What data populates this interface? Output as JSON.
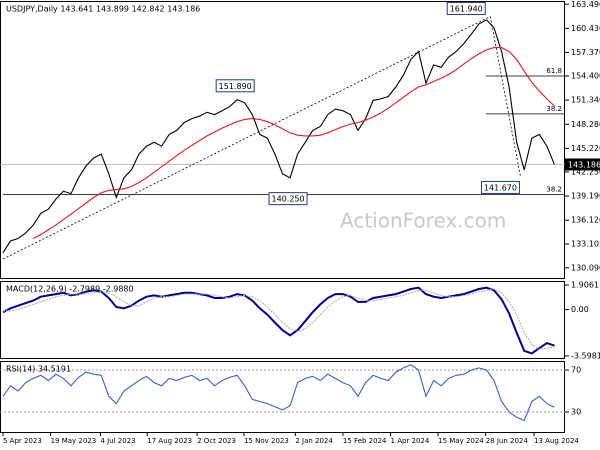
{
  "chart_data": [
    {
      "type": "line",
      "title": "USDJPY,Daily 143.641 143.899 142.842 143.186",
      "watermark": "ActionForex.com",
      "x": [
        0,
        1,
        2,
        3,
        4,
        5,
        6,
        7,
        8,
        9,
        10,
        11,
        12,
        13,
        14,
        15,
        16,
        17,
        18,
        19,
        20,
        21,
        22,
        23,
        24,
        25,
        26,
        27,
        28,
        29,
        30,
        31,
        32,
        33,
        34,
        35,
        36,
        37,
        38,
        39,
        40,
        41,
        42,
        43,
        44,
        45,
        46,
        47,
        48,
        49,
        50,
        51,
        52,
        53,
        54,
        55,
        56,
        57,
        58,
        59,
        60,
        61,
        62,
        63,
        64,
        65,
        66,
        67,
        68,
        69,
        70,
        71,
        72,
        73
      ],
      "series": [
        {
          "color": "#000000",
          "values": [
            132.0,
            133.5,
            133.8,
            134.5,
            135.5,
            137.0,
            137.5,
            138.8,
            139.8,
            139.5,
            141.5,
            143.0,
            144.0,
            144.5,
            142.0,
            139.0,
            141.5,
            142.5,
            144.5,
            145.5,
            146.0,
            145.5,
            147.0,
            147.5,
            148.5,
            149.0,
            149.3,
            149.8,
            149.5,
            150.0,
            150.5,
            151.4,
            151.0,
            149.5,
            147.0,
            146.5,
            144.5,
            142.0,
            141.5,
            144.5,
            146.0,
            147.5,
            148.0,
            149.5,
            150.2,
            150.0,
            149.5,
            147.5,
            149.0,
            151.3,
            151.5,
            151.8,
            153.0,
            154.5,
            156.5,
            157.5,
            153.5,
            155.8,
            155.5,
            156.8,
            157.5,
            158.5,
            159.7,
            161.0,
            161.5,
            160.5,
            157.5,
            153.0,
            146.0,
            142.5,
            146.5,
            147.0,
            145.5,
            143.2
          ]
        },
        {
          "color": "#e41a1c",
          "values": [
            null,
            null,
            null,
            null,
            133.8,
            134.3,
            134.9,
            135.5,
            136.2,
            136.9,
            137.6,
            138.3,
            139.0,
            139.6,
            139.9,
            140.0,
            140.1,
            140.4,
            140.9,
            141.5,
            142.2,
            142.9,
            143.6,
            144.3,
            145.0,
            145.6,
            146.2,
            146.8,
            147.3,
            147.8,
            148.2,
            148.6,
            148.9,
            149.0,
            148.9,
            148.6,
            148.2,
            147.7,
            147.2,
            146.9,
            146.8,
            146.8,
            146.9,
            147.2,
            147.6,
            148.0,
            148.3,
            148.5,
            148.8,
            149.2,
            149.7,
            150.3,
            151.0,
            151.7,
            152.4,
            153.0,
            153.3,
            153.7,
            154.1,
            154.6,
            155.2,
            155.9,
            156.6,
            157.2,
            157.7,
            158.0,
            158.0,
            157.5,
            156.5,
            155.0,
            153.6,
            152.5,
            151.5,
            150.6
          ]
        }
      ],
      "xlim": [
        0,
        74
      ],
      "ylim": [
        128.8,
        163.9
      ],
      "yticks": [
        {
          "value": 130.09,
          "label": "130.090"
        },
        {
          "value": 133.105,
          "label": "133.105"
        },
        {
          "value": 136.12,
          "label": "136.120"
        },
        {
          "value": 139.19,
          "label": "139.190"
        },
        {
          "value": 142.25,
          "label": "142.250"
        },
        {
          "value": 145.22,
          "label": "145.220"
        },
        {
          "value": 148.28,
          "label": "148.280"
        },
        {
          "value": 151.34,
          "label": "151.340"
        },
        {
          "value": 154.4,
          "label": "154.400"
        },
        {
          "value": 157.37,
          "label": "157.370"
        },
        {
          "value": 160.43,
          "label": "160.430"
        },
        {
          "value": 163.49,
          "label": "163.490"
        }
      ],
      "last_price": {
        "value": 143.186,
        "label": "143.186"
      },
      "levels": [
        {
          "label": "61.8",
          "value": 154.4,
          "x": 63.9
        },
        {
          "label": "38.2",
          "value": 149.6,
          "x": 63.9
        },
        {
          "label": "38.2",
          "value": 139.4,
          "x": 0
        }
      ],
      "points": [
        {
          "label": "161.940",
          "value": 161.94,
          "x": 64.5
        },
        {
          "label": "151.890",
          "value": 151.89,
          "x": 31
        },
        {
          "label": "140.250",
          "value": 140.25,
          "x": 38
        },
        {
          "label": "141.670",
          "value": 141.67,
          "x": 68.5
        }
      ],
      "trendlines": [
        {
          "x": [
            0,
            64.5
          ],
          "y": [
            131.2,
            161.94
          ]
        },
        {
          "x": [
            64.5,
            68.5
          ],
          "y": [
            161.94,
            141.67
          ]
        }
      ]
    },
    {
      "type": "line",
      "title": "MACD(12,26,9) -2.7989 -2.9880",
      "x": [
        0,
        1,
        2,
        3,
        4,
        5,
        6,
        7,
        8,
        9,
        10,
        11,
        12,
        13,
        14,
        15,
        16,
        17,
        18,
        19,
        20,
        21,
        22,
        23,
        24,
        25,
        26,
        27,
        28,
        29,
        30,
        31,
        32,
        33,
        34,
        35,
        36,
        37,
        38,
        39,
        40,
        41,
        42,
        43,
        44,
        45,
        46,
        47,
        48,
        49,
        50,
        51,
        52,
        53,
        54,
        55,
        56,
        57,
        58,
        59,
        60,
        61,
        62,
        63,
        64,
        65,
        66,
        67,
        68,
        69,
        70,
        71,
        72,
        73
      ],
      "series": [
        {
          "color": "#00008b",
          "values": [
            -0.2,
            0.1,
            0.3,
            0.5,
            0.7,
            1.0,
            1.1,
            1.2,
            1.3,
            1.1,
            1.2,
            1.4,
            1.5,
            1.4,
            0.9,
            0.2,
            0.1,
            0.3,
            0.7,
            1.0,
            1.1,
            1.0,
            1.1,
            1.2,
            1.3,
            1.3,
            1.2,
            1.1,
            0.9,
            0.9,
            1.0,
            1.2,
            1.1,
            0.7,
            0.1,
            -0.4,
            -1.0,
            -1.6,
            -2.0,
            -1.6,
            -0.9,
            -0.2,
            0.4,
            0.9,
            1.2,
            1.2,
            1.0,
            0.6,
            0.6,
            0.9,
            1.0,
            1.1,
            1.2,
            1.4,
            1.6,
            1.7,
            1.2,
            1.0,
            0.9,
            1.0,
            1.1,
            1.2,
            1.4,
            1.6,
            1.7,
            1.5,
            0.8,
            -0.3,
            -1.8,
            -3.2,
            -3.4,
            -3.0,
            -2.6,
            -2.8
          ]
        },
        {
          "color": "#b0b0b0",
          "values": [
            -0.1,
            -0.1,
            0.0,
            0.2,
            0.4,
            0.6,
            0.8,
            1.0,
            1.1,
            1.2,
            1.2,
            1.2,
            1.3,
            1.4,
            1.3,
            1.0,
            0.6,
            0.3,
            0.3,
            0.6,
            0.9,
            1.0,
            1.0,
            1.1,
            1.2,
            1.2,
            1.2,
            1.2,
            1.1,
            1.0,
            0.9,
            1.0,
            1.1,
            1.0,
            0.7,
            0.2,
            -0.4,
            -1.0,
            -1.5,
            -1.7,
            -1.5,
            -1.0,
            -0.4,
            0.2,
            0.7,
            1.0,
            1.1,
            0.9,
            0.7,
            0.7,
            0.8,
            0.9,
            1.0,
            1.1,
            1.3,
            1.5,
            1.5,
            1.3,
            1.1,
            1.0,
            1.0,
            1.1,
            1.2,
            1.4,
            1.5,
            1.6,
            1.3,
            0.6,
            -0.4,
            -1.8,
            -2.7,
            -3.1,
            -3.0,
            -2.9
          ]
        }
      ],
      "xlim": [
        0,
        74
      ],
      "ylim": [
        -3.76,
        2.22
      ],
      "yticks": [
        1.9061,
        {
          "value": 0,
          "label": "0.00"
        },
        -3.5981
      ]
    },
    {
      "type": "line",
      "title": "RSI(14) 34.5191",
      "x": [
        0,
        1,
        2,
        3,
        4,
        5,
        6,
        7,
        8,
        9,
        10,
        11,
        12,
        13,
        14,
        15,
        16,
        17,
        18,
        19,
        20,
        21,
        22,
        23,
        24,
        25,
        26,
        27,
        28,
        29,
        30,
        31,
        32,
        33,
        34,
        35,
        36,
        37,
        38,
        39,
        40,
        41,
        42,
        43,
        44,
        45,
        46,
        47,
        48,
        49,
        50,
        51,
        52,
        53,
        54,
        55,
        56,
        57,
        58,
        59,
        60,
        61,
        62,
        63,
        64,
        65,
        66,
        67,
        68,
        69,
        70,
        71,
        72,
        73
      ],
      "series": [
        {
          "color": "#3a5fcd",
          "values": [
            45,
            55,
            50,
            58,
            62,
            65,
            60,
            66,
            62,
            55,
            63,
            68,
            66,
            65,
            45,
            38,
            50,
            55,
            60,
            64,
            58,
            55,
            62,
            60,
            63,
            65,
            60,
            62,
            55,
            60,
            63,
            65,
            55,
            42,
            40,
            38,
            35,
            32,
            36,
            58,
            62,
            64,
            60,
            66,
            62,
            58,
            55,
            45,
            58,
            65,
            62,
            60,
            68,
            72,
            75,
            70,
            45,
            60,
            55,
            62,
            65,
            66,
            70,
            72,
            70,
            60,
            40,
            30,
            25,
            22,
            40,
            45,
            38,
            34.5
          ]
        }
      ],
      "xlim": [
        0,
        74
      ],
      "ylim": [
        11,
        78.6
      ],
      "yticks": [
        70,
        30
      ],
      "xticks": [
        {
          "value": 0,
          "label": "5 Apr 2023"
        },
        {
          "value": 6.3,
          "label": "19 May 2023"
        },
        {
          "value": 12.9,
          "label": "4 Jul 2023"
        },
        {
          "value": 19.1,
          "label": "17 Aug 2023"
        },
        {
          "value": 25.7,
          "label": "2 Oct 2023"
        },
        {
          "value": 31.9,
          "label": "15 Nov 2023"
        },
        {
          "value": 38.7,
          "label": "2 Jan 2024"
        },
        {
          "value": 45,
          "label": "15 Feb 2024"
        },
        {
          "value": 51.3,
          "label": "1 Apr 2024"
        },
        {
          "value": 57.6,
          "label": "15 May 2024"
        },
        {
          "value": 63.9,
          "label": "28 Jun 2024"
        },
        {
          "value": 70.3,
          "label": "13 Aug 2024"
        }
      ]
    }
  ]
}
